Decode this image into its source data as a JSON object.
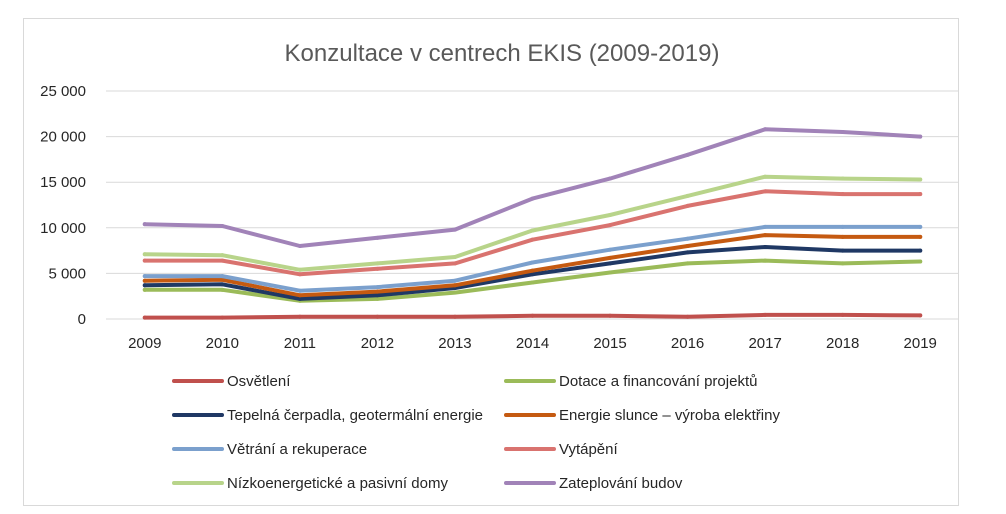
{
  "chart_data": {
    "type": "line",
    "title": "Konzultace v centrech EKIS (2009-2019)",
    "xlabel": "",
    "ylabel": "",
    "x": [
      "2009",
      "2010",
      "2011",
      "2012",
      "2013",
      "2014",
      "2015",
      "2016",
      "2017",
      "2018",
      "2019"
    ],
    "ylim": [
      0,
      25000
    ],
    "yticks": [
      {
        "value": 0,
        "label": "0"
      },
      {
        "value": 5000,
        "label": "5 000"
      },
      {
        "value": 10000,
        "label": "10 000"
      },
      {
        "value": 15000,
        "label": "15 000"
      },
      {
        "value": 20000,
        "label": "20 000"
      },
      {
        "value": 25000,
        "label": "25 000"
      }
    ],
    "grid": true,
    "legend_position": "bottom",
    "series": [
      {
        "name": "Osvětlení",
        "color": "#c0504d",
        "values": [
          150,
          150,
          250,
          250,
          250,
          350,
          350,
          250,
          450,
          450,
          400
        ]
      },
      {
        "name": "Dotace a financování projektů",
        "color": "#9bbb59",
        "values": [
          3200,
          3200,
          2000,
          2200,
          2900,
          4000,
          5100,
          6100,
          6400,
          6100,
          6300
        ]
      },
      {
        "name": "Tepelná čerpadla, geotermální energie",
        "color": "#1f3864",
        "values": [
          3700,
          3800,
          2200,
          2600,
          3400,
          4900,
          6100,
          7300,
          7900,
          7500,
          7500
        ]
      },
      {
        "name": "Energie slunce – výroba elektřiny",
        "color": "#c55a11",
        "values": [
          4200,
          4300,
          2600,
          3000,
          3700,
          5300,
          6700,
          8000,
          9200,
          9000,
          9000
        ]
      },
      {
        "name": "Větrání a rekuperace",
        "color": "#7ba0cd",
        "values": [
          4700,
          4700,
          3100,
          3500,
          4200,
          6200,
          7600,
          8800,
          10100,
          10100,
          10100
        ]
      },
      {
        "name": "Vytápění",
        "color": "#d9736f",
        "values": [
          6400,
          6400,
          4900,
          5500,
          6100,
          8700,
          10300,
          12400,
          14000,
          13700,
          13700
        ]
      },
      {
        "name": "Nízkoenergetické a pasivní domy",
        "color": "#b8d48a",
        "values": [
          7100,
          7000,
          5400,
          6100,
          6800,
          9700,
          11400,
          13500,
          15600,
          15400,
          15300
        ]
      },
      {
        "name": "Zateplování budov",
        "color": "#a183b8",
        "values": [
          10400,
          10200,
          8000,
          8900,
          9800,
          13200,
          15400,
          18000,
          20800,
          20500,
          20000
        ]
      }
    ]
  }
}
